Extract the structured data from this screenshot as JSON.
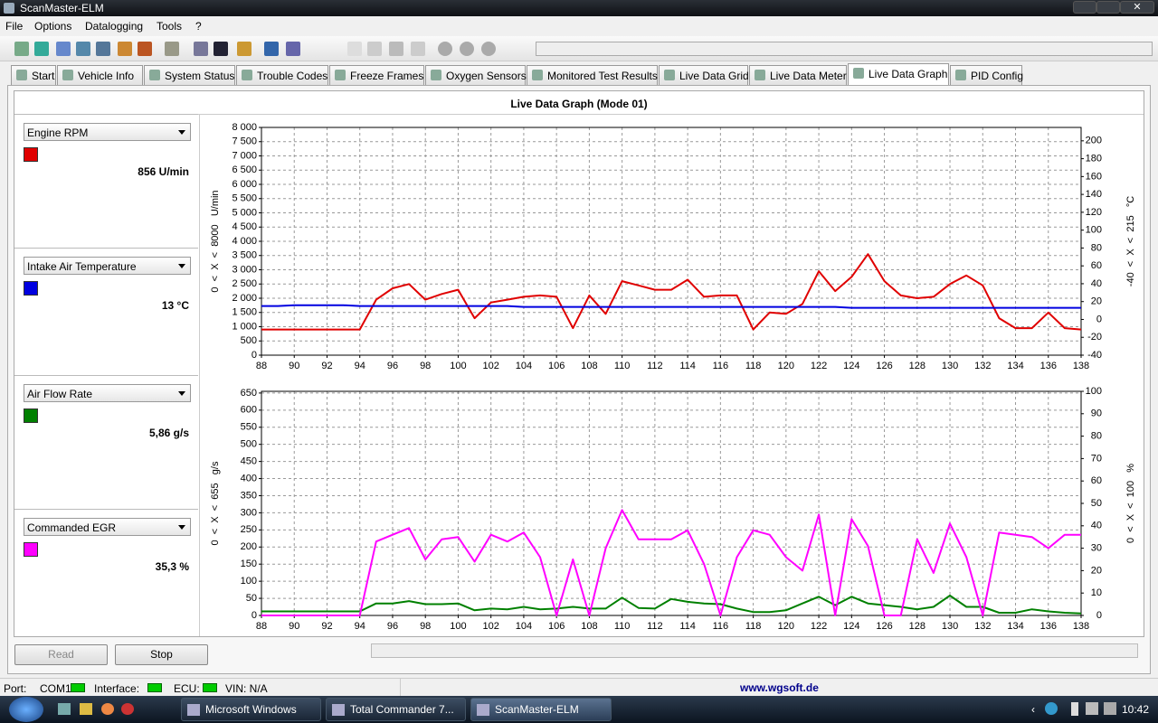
{
  "window_title": "ScanMaster-ELM",
  "menu": [
    "File",
    "Options",
    "Datalogging",
    "Tools",
    "?"
  ],
  "tabs": [
    "Start",
    "Vehicle Info",
    "System Status",
    "Trouble Codes",
    "Freeze Frames",
    "Oxygen Sensors",
    "Monitored Test Results",
    "Live Data Grid",
    "Live Data Meter",
    "Live Data Graph",
    "PID Config"
  ],
  "panel_title": "Live Data Graph (Mode 01)",
  "sensors": [
    {
      "name": "Engine RPM",
      "value": "856 U/min"
    },
    {
      "name": "Intake Air Temperature",
      "value": "13 °C"
    },
    {
      "name": "Air Flow Rate",
      "value": "5,86 g/s"
    },
    {
      "name": "Commanded EGR",
      "value": "35,3 %"
    }
  ],
  "chart_data": [
    {
      "type": "line",
      "y_label": "0  <  X  <  8000   U/min",
      "y2_label": "-40  <  X  <  215   °C",
      "x": [
        88,
        89,
        90,
        91,
        92,
        93,
        94,
        95,
        96,
        97,
        98,
        99,
        100,
        101,
        102,
        103,
        104,
        105,
        106,
        107,
        108,
        109,
        110,
        111,
        112,
        113,
        114,
        115,
        116,
        117,
        118,
        119,
        120,
        121,
        122,
        123,
        124,
        125,
        126,
        127,
        128,
        129,
        130,
        131,
        132,
        133,
        134,
        135,
        136,
        137,
        138
      ],
      "xlim": [
        88,
        138
      ],
      "xticks": [
        88,
        90,
        92,
        94,
        96,
        98,
        100,
        102,
        104,
        106,
        108,
        110,
        112,
        114,
        116,
        118,
        120,
        122,
        124,
        126,
        128,
        130,
        132,
        134,
        136,
        138
      ],
      "ylim": [
        0,
        8000
      ],
      "yticks": [
        0,
        500,
        {
          "value": 1000,
          "label": "1 000"
        },
        {
          "value": 1500,
          "label": "1 500"
        },
        {
          "value": 2000,
          "label": "2 000"
        },
        {
          "value": 2500,
          "label": "2 500"
        },
        {
          "value": 3000,
          "label": "3 000"
        },
        {
          "value": 3500,
          "label": "3 500"
        },
        {
          "value": 4000,
          "label": "4 000"
        },
        {
          "value": 4500,
          "label": "4 500"
        },
        {
          "value": 5000,
          "label": "5 000"
        },
        {
          "value": 5500,
          "label": "5 500"
        },
        {
          "value": 6000,
          "label": "6 000"
        },
        {
          "value": 6500,
          "label": "6 500"
        },
        {
          "value": 7000,
          "label": "7 000"
        },
        {
          "value": 7500,
          "label": "7 500"
        },
        {
          "value": 8000,
          "label": "8 000"
        }
      ],
      "y2lim": [
        -40,
        215
      ],
      "y2ticks": [
        -40,
        -20,
        0,
        20,
        40,
        60,
        80,
        100,
        120,
        140,
        160,
        180,
        200
      ],
      "grid": true,
      "series": [
        {
          "name": "Engine RPM",
          "color": "#e00000",
          "values": [
            900,
            900,
            900,
            900,
            900,
            900,
            900,
            1950,
            2350,
            2500,
            1950,
            2150,
            2300,
            1300,
            1850,
            1950,
            2050,
            2100,
            2050,
            950,
            2100,
            1450,
            2600,
            2450,
            2300,
            2300,
            2650,
            2050,
            2100,
            2100,
            900,
            1500,
            1450,
            1800,
            2950,
            2250,
            2750,
            3550,
            2600,
            2100,
            2000,
            2050,
            2500,
            2800,
            2450,
            1300,
            950,
            950,
            1500,
            950,
            900
          ]
        },
        {
          "name": "Intake Air Temperature",
          "color": "#0000e0",
          "axis": "y2",
          "values": [
            15,
            15,
            16,
            16,
            16,
            16,
            15,
            15,
            15,
            15,
            15,
            15,
            15,
            15,
            15,
            15,
            14,
            14,
            14,
            14,
            14,
            14,
            14,
            14,
            14,
            14,
            14,
            14,
            14,
            14,
            14,
            14,
            14,
            14,
            14,
            14,
            13,
            13,
            13,
            13,
            13,
            13,
            13,
            13,
            13,
            13,
            13,
            13,
            13,
            13,
            13
          ]
        }
      ]
    },
    {
      "type": "line",
      "y_label": "0  <  X  <  655   g/s",
      "y2_label": "0  <  X  <  100   %",
      "x": [
        88,
        89,
        90,
        91,
        92,
        93,
        94,
        95,
        96,
        97,
        98,
        99,
        100,
        101,
        102,
        103,
        104,
        105,
        106,
        107,
        108,
        109,
        110,
        111,
        112,
        113,
        114,
        115,
        116,
        117,
        118,
        119,
        120,
        121,
        122,
        123,
        124,
        125,
        126,
        127,
        128,
        129,
        130,
        131,
        132,
        133,
        134,
        135,
        136,
        137,
        138
      ],
      "xlim": [
        88,
        138
      ],
      "xticks": [
        88,
        90,
        92,
        94,
        96,
        98,
        100,
        102,
        104,
        106,
        108,
        110,
        112,
        114,
        116,
        118,
        120,
        122,
        124,
        126,
        128,
        130,
        132,
        134,
        136,
        138
      ],
      "ylim": [
        0,
        655
      ],
      "yticks": [
        0,
        50,
        100,
        150,
        200,
        250,
        300,
        350,
        400,
        450,
        500,
        550,
        600,
        650
      ],
      "y2lim": [
        0,
        100
      ],
      "y2ticks": [
        0,
        10,
        20,
        30,
        40,
        50,
        60,
        70,
        80,
        90,
        100
      ],
      "grid": true,
      "series": [
        {
          "name": "Air Flow Rate",
          "color": "#008000",
          "values": [
            12,
            12,
            12,
            12,
            12,
            12,
            12,
            35,
            35,
            42,
            33,
            33,
            35,
            15,
            20,
            18,
            25,
            18,
            20,
            25,
            20,
            20,
            52,
            22,
            20,
            48,
            40,
            35,
            33,
            20,
            10,
            10,
            15,
            35,
            55,
            30,
            55,
            35,
            30,
            25,
            18,
            25,
            58,
            25,
            25,
            8,
            8,
            18,
            12,
            8,
            6
          ]
        },
        {
          "name": "Commanded EGR",
          "color": "#ff00ff",
          "axis": "y2",
          "values": [
            0,
            0,
            0,
            0,
            0,
            0,
            0,
            33,
            36,
            39,
            25,
            34,
            35,
            24,
            36,
            33,
            37,
            26,
            0,
            25,
            0,
            30,
            47,
            34,
            34,
            34,
            38,
            23,
            0,
            26,
            38,
            36,
            26,
            20,
            45,
            0,
            43,
            31,
            0,
            0,
            34,
            19,
            41,
            26,
            0,
            37,
            36,
            35,
            30,
            36,
            36
          ]
        }
      ]
    }
  ],
  "buttons": [
    "Read",
    "Stop"
  ],
  "status": {
    "port_label": "Port:",
    "port": "COM1",
    "interface_label": "Interface:",
    "ecu_label": "ECU:",
    "vin": "VIN: N/A",
    "website": "www.wgsoft.de"
  },
  "taskbar": {
    "items": [
      "Microsoft Windows",
      "Total Commander 7...",
      "ScanMaster-ELM"
    ],
    "clock": "10:42"
  }
}
